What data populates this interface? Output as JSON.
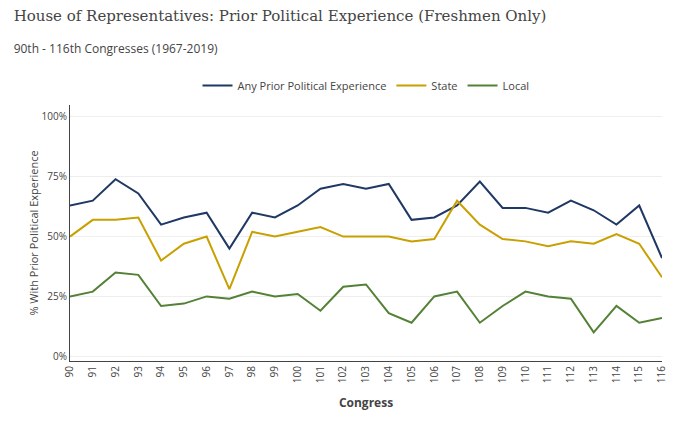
{
  "chart_data": {
    "type": "line",
    "title": "House of Representatives: Prior Political Experience (Freshmen Only)",
    "subtitle": "90th - 116th Congresses (1967-2019)",
    "xlabel": "Congress",
    "ylabel": "% With Prior Political Experience",
    "categories": [
      "90",
      "91",
      "92",
      "93",
      "94",
      "95",
      "96",
      "97",
      "98",
      "99",
      "100",
      "101",
      "102",
      "103",
      "104",
      "105",
      "106",
      "107",
      "108",
      "109",
      "110",
      "111",
      "112",
      "113",
      "114",
      "115",
      "116"
    ],
    "series": [
      {
        "name": "Any Prior Political Experience",
        "color": "#1f3864",
        "values": [
          63,
          65,
          74,
          68,
          55,
          58,
          60,
          45,
          60,
          58,
          63,
          70,
          72,
          70,
          72,
          57,
          58,
          63,
          73,
          62,
          62,
          60,
          65,
          61,
          55,
          63,
          41
        ]
      },
      {
        "name": "State",
        "color": "#c8a000",
        "values": [
          50,
          57,
          57,
          58,
          40,
          47,
          50,
          28,
          52,
          50,
          52,
          54,
          50,
          50,
          50,
          48,
          49,
          65,
          55,
          49,
          48,
          46,
          48,
          47,
          51,
          47,
          33
        ]
      },
      {
        "name": "Local",
        "color": "#538135",
        "values": [
          25,
          27,
          35,
          34,
          21,
          22,
          25,
          24,
          27,
          25,
          26,
          19,
          29,
          30,
          18,
          14,
          25,
          27,
          14,
          21,
          27,
          25,
          24,
          10,
          21,
          14,
          16
        ]
      }
    ],
    "ylim": [
      -2,
      105
    ],
    "yticks": [
      {
        "value": 0,
        "label": "0%"
      },
      {
        "value": 25,
        "label": "25%"
      },
      {
        "value": 50,
        "label": "50%"
      },
      {
        "value": 75,
        "label": "75%"
      },
      {
        "value": 100,
        "label": "100%"
      }
    ],
    "grid": true,
    "legend": "top"
  }
}
